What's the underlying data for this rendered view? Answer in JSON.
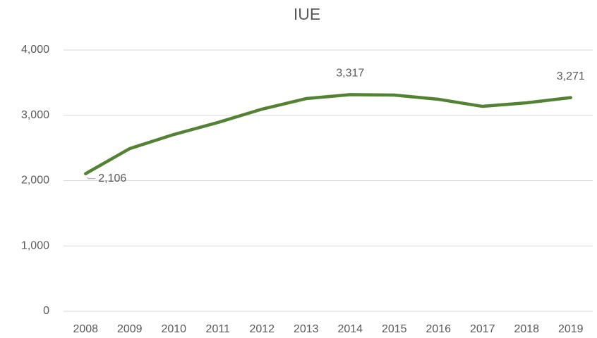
{
  "chart_data": {
    "type": "line",
    "title": "IUE",
    "categories": [
      "2008",
      "2009",
      "2010",
      "2011",
      "2012",
      "2013",
      "2014",
      "2015",
      "2016",
      "2017",
      "2018",
      "2019"
    ],
    "series": [
      {
        "color": "#548235",
        "values": [
          2106,
          2490,
          2706,
          2890,
          3094,
          3256,
          3317,
          3310,
          3245,
          3137,
          3191,
          3271
        ],
        "value_labels": [
          "2,106",
          null,
          null,
          null,
          null,
          null,
          "3,317",
          null,
          null,
          null,
          null,
          "3,271"
        ]
      }
    ],
    "ylim": [
      0,
      4000
    ],
    "yticks": [
      0,
      {
        "value": 1000,
        "label": "1,000"
      },
      {
        "value": 2000,
        "label": "2,000"
      },
      {
        "value": 3000,
        "label": "3,000"
      },
      {
        "value": 4000,
        "label": "4,000"
      }
    ],
    "grid": true
  }
}
